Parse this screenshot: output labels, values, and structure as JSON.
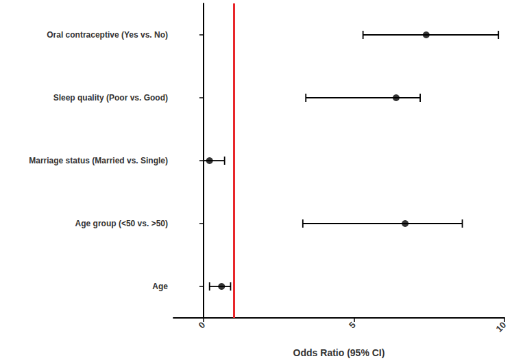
{
  "chart_data": {
    "type": "scatter",
    "x_label": "Odds Ratio (95% CI)",
    "categories": [
      "Oral contraceptive (Yes vs. No)",
      "Sleep quality (Poor vs. Good)",
      "Marriage status (Married vs. Single)",
      "Age group (<50 vs. >50)",
      "Age"
    ],
    "values": [
      7.4,
      6.4,
      0.2,
      6.7,
      0.6
    ],
    "ci_lower": [
      5.3,
      3.4,
      0.0,
      3.3,
      0.2
    ],
    "ci_upper": [
      9.8,
      7.2,
      0.7,
      8.6,
      0.9
    ],
    "color": "#000000",
    "marker": "circle",
    "reference_line": {
      "value": 1,
      "color": "#e8262a"
    },
    "xlim": [
      -1,
      10
    ],
    "xticks": [
      0,
      5,
      10
    ],
    "grid": false
  }
}
